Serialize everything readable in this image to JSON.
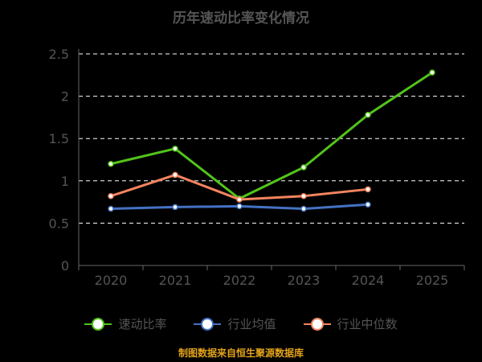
{
  "title": "历年速动比率变化情况",
  "footer": "制图数据来自恒生聚源数据库",
  "colors": {
    "series_1": "#52c41a",
    "series_2": "#4472c4",
    "series_3": "#f4845f",
    "axis_text": "#555555",
    "grid": "#ffffff",
    "footer": "#e2a21b"
  },
  "chart_data": {
    "type": "line",
    "title": "历年速动比率变化情况",
    "xlabel": "",
    "ylabel": "",
    "categories": [
      "2020",
      "2021",
      "2022",
      "2023",
      "2024",
      "2025"
    ],
    "y_ticks": [
      "0",
      "0.5",
      "1",
      "1.5",
      "2",
      "2.5"
    ],
    "ylim": [
      0,
      2.5
    ],
    "grid": "horizontal dashed",
    "legend_position": "bottom",
    "series": [
      {
        "name": "速动比率",
        "color": "#52c41a",
        "values": [
          1.2,
          1.38,
          0.79,
          1.16,
          1.78,
          2.28
        ]
      },
      {
        "name": "行业均值",
        "color": "#4472c4",
        "values": [
          0.67,
          0.69,
          0.7,
          0.67,
          0.72,
          null
        ]
      },
      {
        "name": "行业中位数",
        "color": "#f4845f",
        "values": [
          0.82,
          1.07,
          0.78,
          0.82,
          0.9,
          null
        ]
      }
    ]
  }
}
